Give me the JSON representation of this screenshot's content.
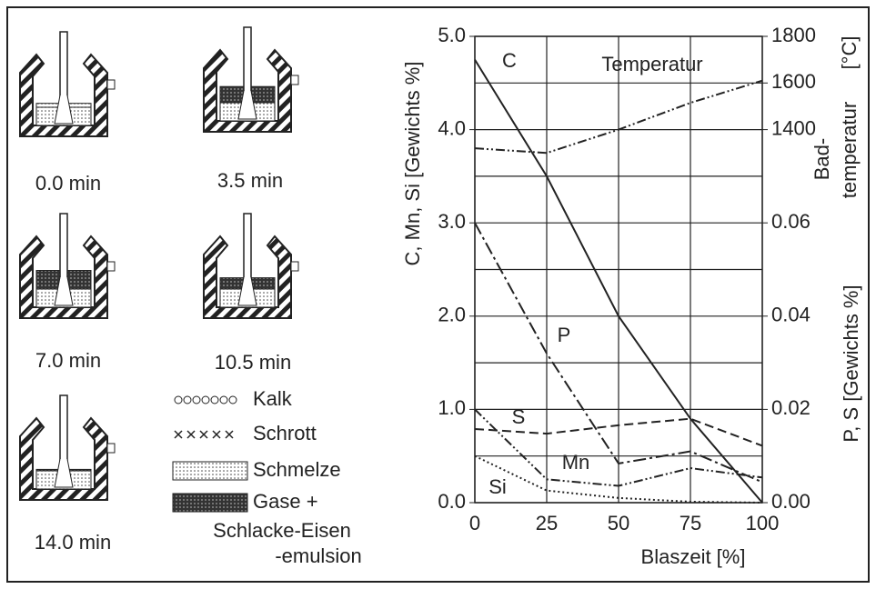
{
  "chart_data": {
    "type": "line",
    "x": [
      0,
      25,
      50,
      75,
      100
    ],
    "xlim": [
      0,
      100
    ],
    "xticks": [
      0,
      25,
      50,
      75,
      100
    ],
    "ylim": [
      0,
      5
    ],
    "yticks": [
      {
        "value": 0,
        "label": "0.0"
      },
      {
        "value": 1,
        "label": "1.0"
      },
      {
        "value": 2,
        "label": "2.0"
      },
      {
        "value": 3,
        "label": "3.0"
      },
      {
        "value": 4,
        "label": "4.0"
      },
      {
        "value": 5,
        "label": "5.0"
      }
    ],
    "yminor": [
      0.5,
      1.5,
      2.5,
      3.5,
      4.5
    ],
    "y2lim": [
      0,
      0.1
    ],
    "y2ticks": [
      {
        "value": 0,
        "label": "0.00"
      },
      0.02,
      0.04,
      0.06
    ],
    "y3lim": [
      1400,
      1800
    ],
    "y3ticks": [
      1400,
      1600,
      1800
    ],
    "grid": true,
    "xlabel": "Blaszeit [%]",
    "ylabel": "C, Mn, Si [Gewichts %]",
    "y2label": "P, S [Gewichts %]",
    "y3label": [
      "Bad-",
      "temperatur",
      "[°C]"
    ],
    "series": [
      {
        "name": "C",
        "color": "#222222",
        "style": "solid",
        "values": [
          4.75,
          3.5,
          2.0,
          0.9,
          0.0
        ]
      },
      {
        "name": "Temperatur",
        "color": "#222222",
        "style": "dashdotdot",
        "axis": "y3",
        "values": [
          1320,
          1300,
          1400,
          1515,
          1610
        ]
      },
      {
        "name": "P",
        "color": "#222222",
        "style": "dashdot",
        "axis": "y2",
        "values": [
          0.06,
          0.032,
          0.0084,
          0.011,
          0.0044
        ]
      },
      {
        "name": "S",
        "color": "#222222",
        "style": "dashed",
        "axis": "y2",
        "values": [
          0.0158,
          0.0148,
          0.0166,
          0.018,
          0.0122
        ]
      },
      {
        "name": "Mn",
        "color": "#222222",
        "style": "dashdotdot",
        "values": [
          1.0,
          0.25,
          0.18,
          0.37,
          0.27
        ]
      },
      {
        "name": "Si",
        "color": "#222222",
        "style": "dotted",
        "values": [
          0.5,
          0.13,
          0.05,
          0.01,
          0.0
        ]
      }
    ]
  },
  "vessels": [
    {
      "label": "0.0 min"
    },
    {
      "label": "3.5 min"
    },
    {
      "label": "7.0 min"
    },
    {
      "label": "10.5 min"
    },
    {
      "label": "14.0 min"
    }
  ],
  "legend": [
    {
      "label": [
        "Kalk"
      ]
    },
    {
      "label": [
        "Schrott"
      ]
    },
    {
      "label": [
        "Schmelze"
      ]
    },
    {
      "label": [
        "Gase +",
        "Schlacke-Eisen",
        "-emulsion"
      ]
    }
  ]
}
